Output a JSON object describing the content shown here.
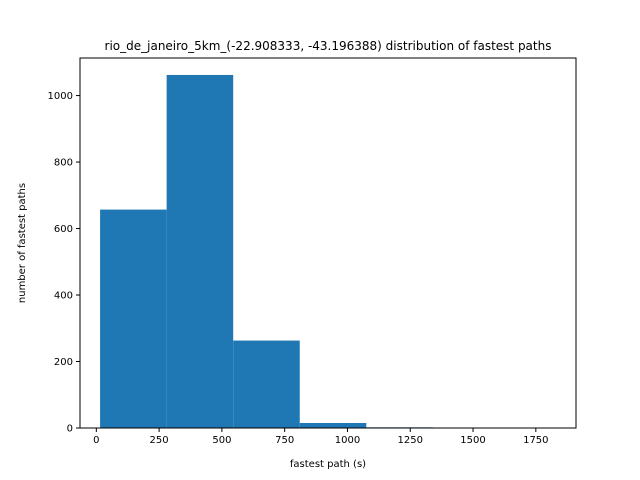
{
  "chart_data": {
    "type": "histogram",
    "title": "rio_de_janeiro_5km_(-22.908333, -43.196388) distribution of fastest paths",
    "xlabel": "fastest path (s)",
    "ylabel": "number of fastest paths",
    "xlim": [
      -65,
      1910
    ],
    "ylim": [
      0,
      1113
    ],
    "x_ticks": [
      0,
      250,
      500,
      750,
      1000,
      1250,
      1500,
      1750
    ],
    "y_ticks": [
      0,
      200,
      400,
      600,
      800,
      1000
    ],
    "bins": [
      {
        "x0": 15,
        "x1": 280,
        "count": 657
      },
      {
        "x0": 280,
        "x1": 545,
        "count": 1062
      },
      {
        "x0": 545,
        "x1": 810,
        "count": 263
      },
      {
        "x0": 810,
        "x1": 1075,
        "count": 15
      },
      {
        "x0": 1075,
        "x1": 1340,
        "count": 2
      },
      {
        "x0": 1340,
        "x1": 1605,
        "count": 0
      },
      {
        "x0": 1605,
        "x1": 1870,
        "count": 1
      }
    ],
    "bar_color": "#1f77b4",
    "grid": false
  }
}
